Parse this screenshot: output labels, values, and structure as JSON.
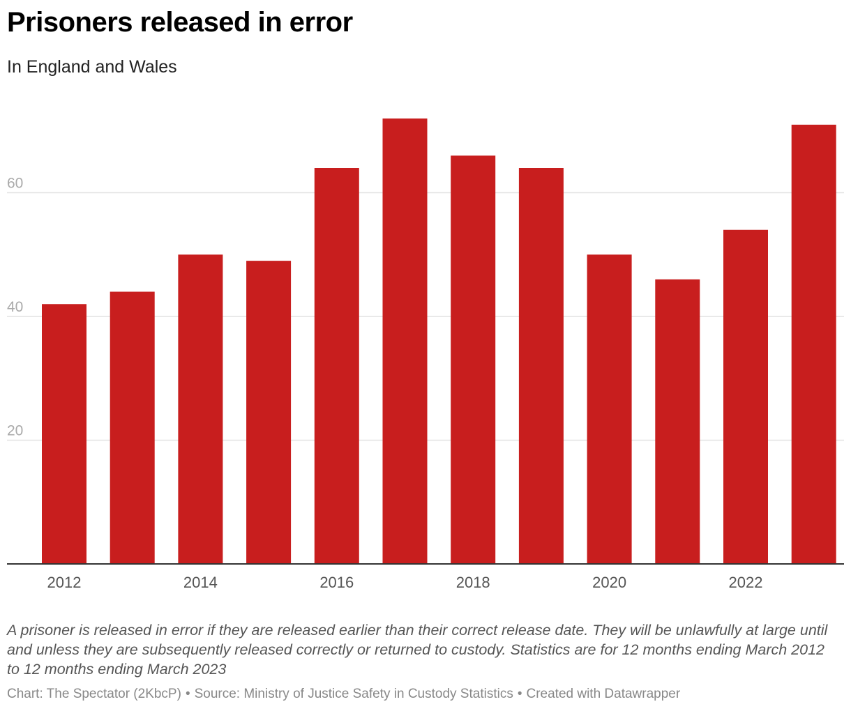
{
  "title": "Prisoners released in error",
  "subtitle": "In England and Wales",
  "notes": "A prisoner is released in error if they are released earlier than their correct release date. They will be unlawfully at large until and unless they are subsequently released correctly or returned to custody. Statistics are for 12 months ending March 2012 to 12 months ending March 2023",
  "footer": {
    "chart_credit": "Chart: The Spectator (2KbcP)",
    "source": "Source: Ministry of Justice Safety in Custody Statistics",
    "created_with": "Created with Datawrapper"
  },
  "colors": {
    "bar": "#c81e1e",
    "grid": "#e2e2e2",
    "baseline": "#333333"
  },
  "chart_data": {
    "type": "bar",
    "categories": [
      "2012",
      "2013",
      "2014",
      "2015",
      "2016",
      "2017",
      "2018",
      "2019",
      "2020",
      "2021",
      "2022",
      "2023"
    ],
    "values": [
      42,
      44,
      50,
      49,
      64,
      72,
      66,
      64,
      50,
      46,
      54,
      71
    ],
    "x_tick_labels": [
      "2012",
      "2014",
      "2016",
      "2018",
      "2020",
      "2022"
    ],
    "y_ticks": [
      20,
      40,
      60
    ],
    "ylim": [
      0,
      80
    ],
    "grid": true,
    "xlabel": "",
    "ylabel": ""
  }
}
